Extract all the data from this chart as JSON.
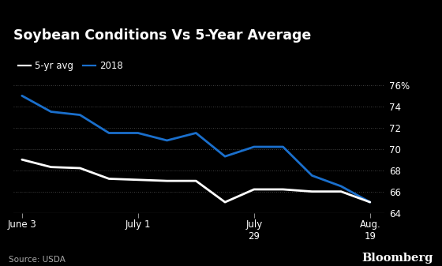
{
  "title": "Soybean Conditions Vs 5-Year Average",
  "source": "Source: USDA",
  "watermark": "Bloomberg",
  "background_color": "#000000",
  "text_color": "#ffffff",
  "ylim": [
    64,
    77
  ],
  "yticks": [
    64,
    66,
    68,
    70,
    72,
    74,
    76
  ],
  "ytick_labels": [
    "64",
    "66",
    "68",
    "70",
    "72",
    "74",
    "76%"
  ],
  "x_values": [
    0,
    1,
    2,
    3,
    4,
    5,
    6,
    7,
    8,
    9,
    10,
    11,
    12
  ],
  "xtick_positions": [
    0,
    4,
    8,
    12
  ],
  "xtick_labels": [
    "June 3",
    "July 1",
    "July\n29",
    "Aug.\n19"
  ],
  "series_2018": [
    75.0,
    73.5,
    73.2,
    71.5,
    71.5,
    70.8,
    71.5,
    69.3,
    70.2,
    70.2,
    67.5,
    66.5,
    65.0
  ],
  "series_5yr": [
    69.0,
    68.3,
    68.2,
    67.2,
    67.1,
    67.0,
    67.0,
    65.0,
    66.2,
    66.2,
    66.0,
    66.0,
    65.0
  ],
  "color_2018": "#1a6fcc",
  "color_5yr": "#ffffff",
  "linewidth": 2.0,
  "legend_5yr": "5-yr avg",
  "legend_2018": "2018",
  "grid_color": "#555555",
  "axis_line_color": "#888888"
}
